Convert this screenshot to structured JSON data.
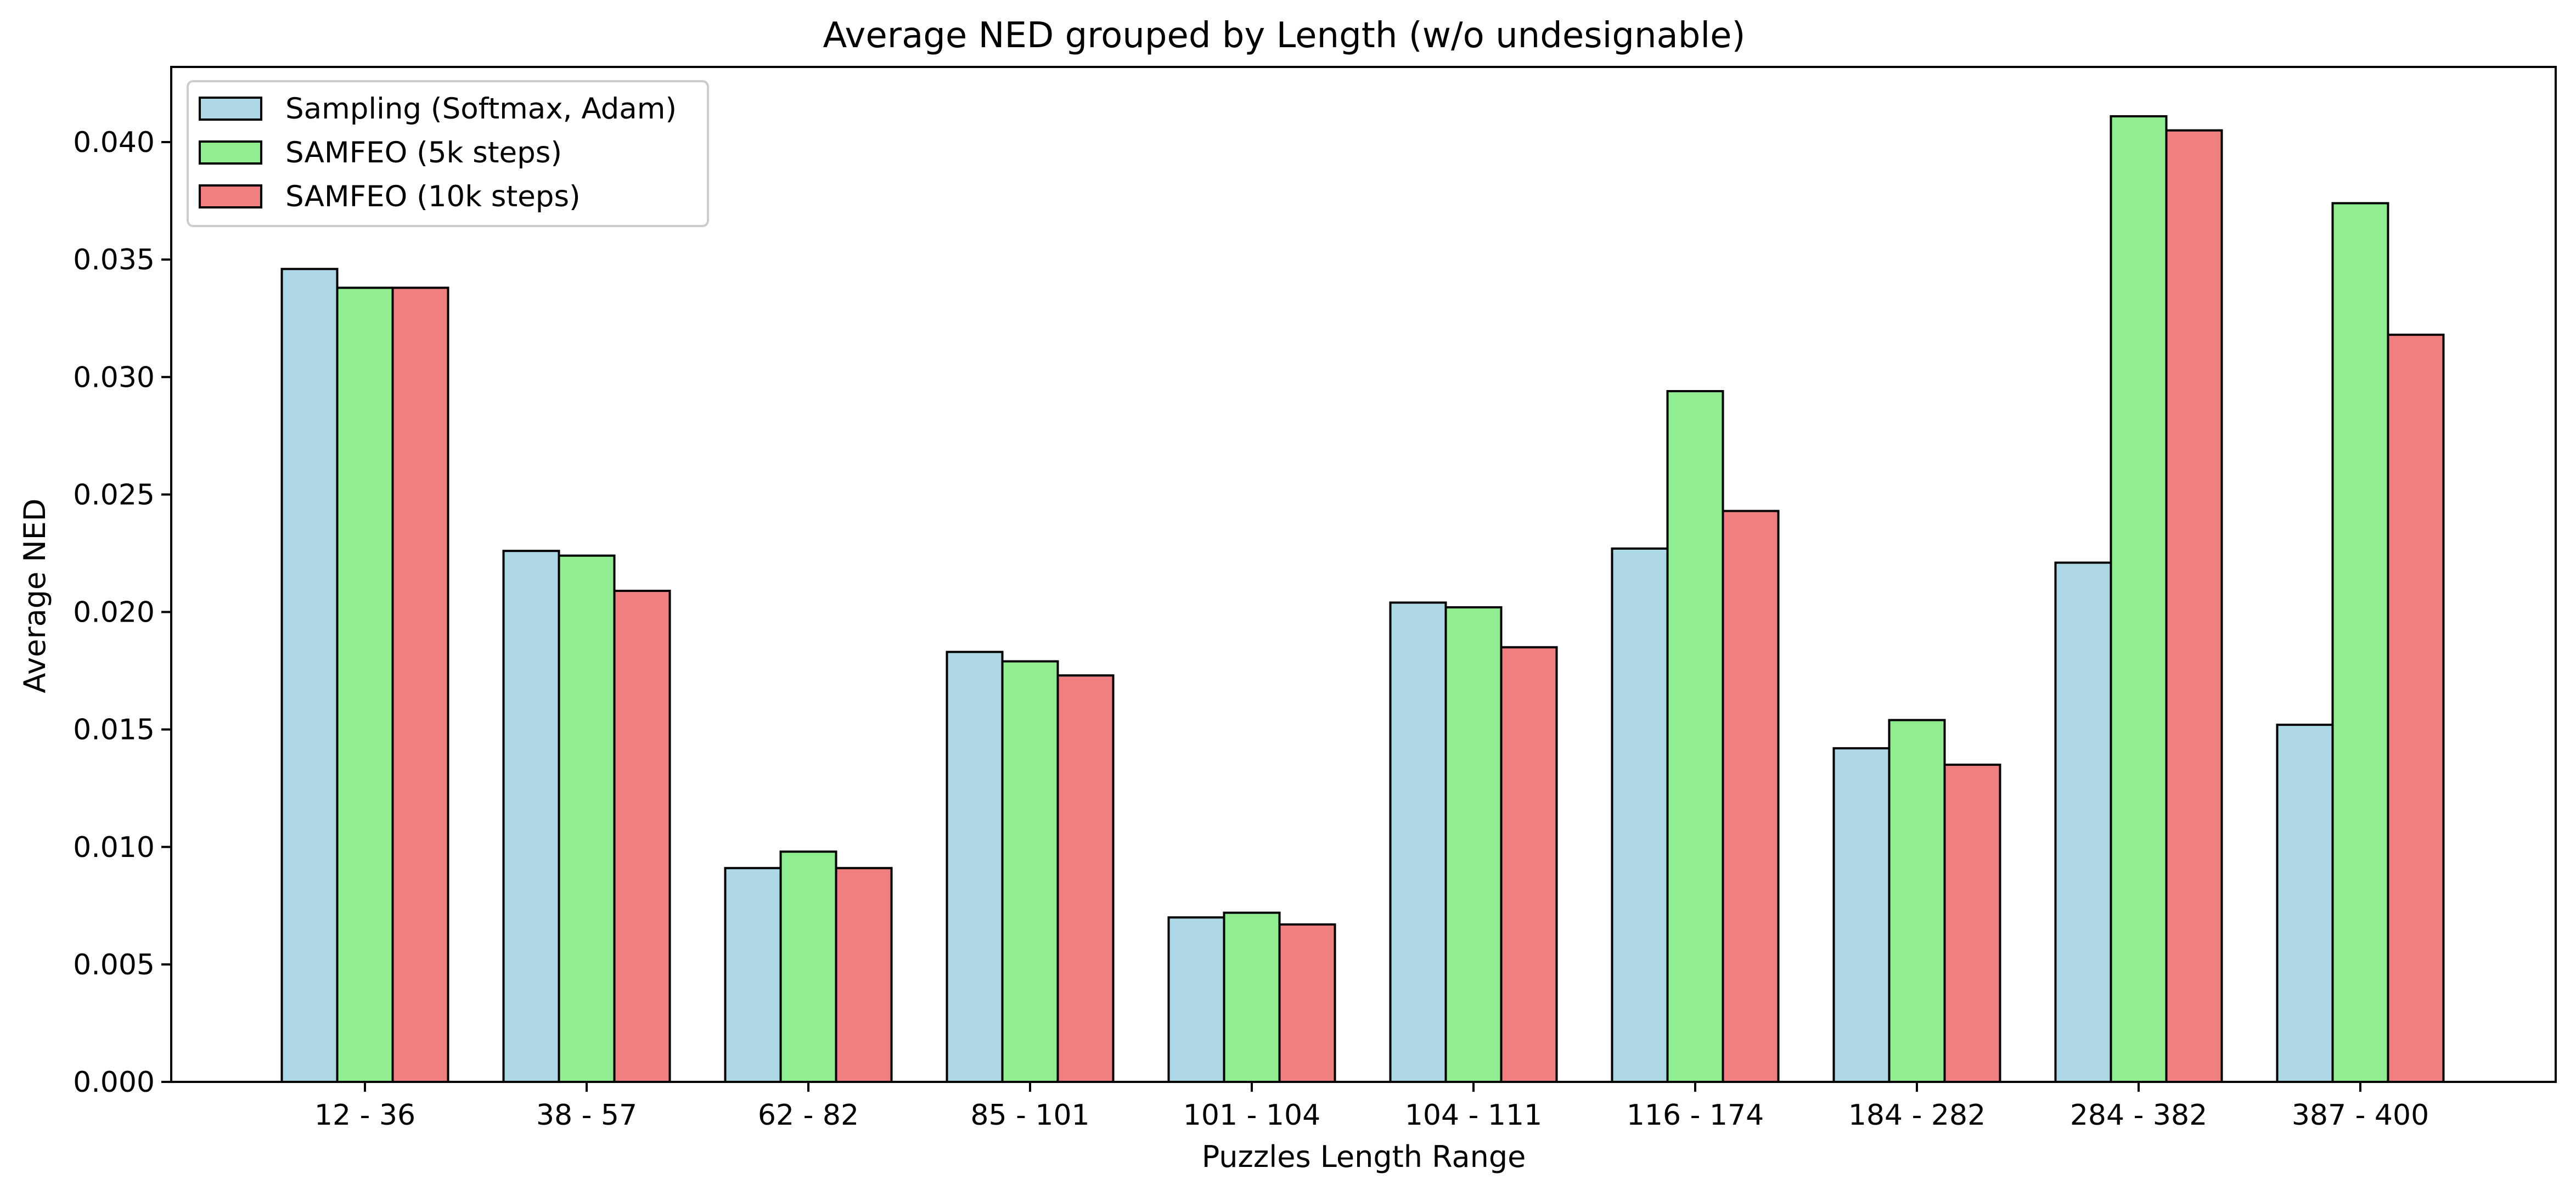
{
  "chart_data": {
    "type": "bar",
    "title": "Average NED grouped by Length (w/o undesignable)",
    "xlabel": "Puzzles Length Range",
    "ylabel": "Average NED",
    "ylim": [
      0,
      0.0432
    ],
    "yticks": [
      "0.000",
      "0.005",
      "0.010",
      "0.015",
      "0.020",
      "0.025",
      "0.030",
      "0.035",
      "0.040"
    ],
    "ytick_values": [
      0,
      0.005,
      0.01,
      0.015,
      0.02,
      0.025,
      0.03,
      0.035,
      0.04
    ],
    "grid": false,
    "legend_position": "top-left",
    "categories": [
      "12 - 36",
      "38 - 57",
      "62 - 82",
      "85 - 101",
      "101 - 104",
      "104 - 111",
      "116 - 174",
      "184 - 282",
      "284 - 382",
      "387 - 400"
    ],
    "series": [
      {
        "name": "Sampling (Softmax, Adam)",
        "color": "#add8e6",
        "values": [
          0.0346,
          0.0226,
          0.0091,
          0.0183,
          0.007,
          0.0204,
          0.0227,
          0.0142,
          0.0221,
          0.0152
        ]
      },
      {
        "name": "SAMFEO (5k steps)",
        "color": "#90ee90",
        "values": [
          0.0338,
          0.0224,
          0.0098,
          0.0179,
          0.0072,
          0.0202,
          0.0294,
          0.0154,
          0.0411,
          0.0374
        ]
      },
      {
        "name": "SAMFEO (10k steps)",
        "color": "#f08080",
        "values": [
          0.0338,
          0.0209,
          0.0091,
          0.0173,
          0.0067,
          0.0185,
          0.0243,
          0.0135,
          0.0405,
          0.0318
        ]
      }
    ]
  }
}
